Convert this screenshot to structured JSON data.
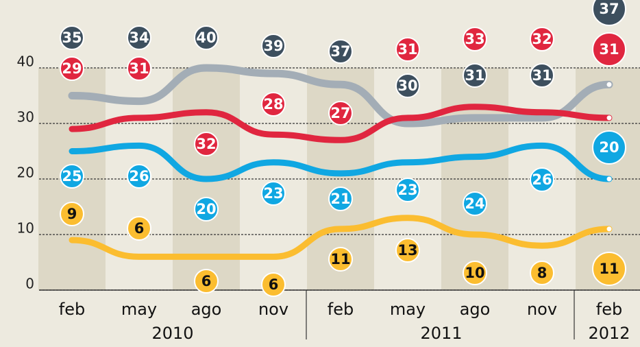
{
  "chart_data": {
    "type": "line",
    "categories": [
      "feb",
      "may",
      "ago",
      "nov",
      "feb",
      "may",
      "ago",
      "nov",
      "feb"
    ],
    "year_labels": [
      "2010",
      "2011",
      "2012"
    ],
    "series": [
      {
        "color": "#a3adb6",
        "values": [
          35,
          34,
          40,
          39,
          37,
          30,
          31,
          31,
          37
        ]
      },
      {
        "color": "#e0263f",
        "values": [
          29,
          31,
          32,
          28,
          27,
          31,
          33,
          32,
          31
        ]
      },
      {
        "color": "#10a7e2",
        "values": [
          25,
          26,
          20,
          23,
          21,
          23,
          24,
          26,
          20
        ]
      },
      {
        "color": "#fbbd30",
        "values": [
          9,
          6,
          6,
          6,
          11,
          13,
          10,
          8,
          11
        ]
      }
    ],
    "ylim": [
      0,
      40
    ],
    "yticks": [
      0,
      10,
      20,
      30,
      40
    ],
    "grid": true
  }
}
